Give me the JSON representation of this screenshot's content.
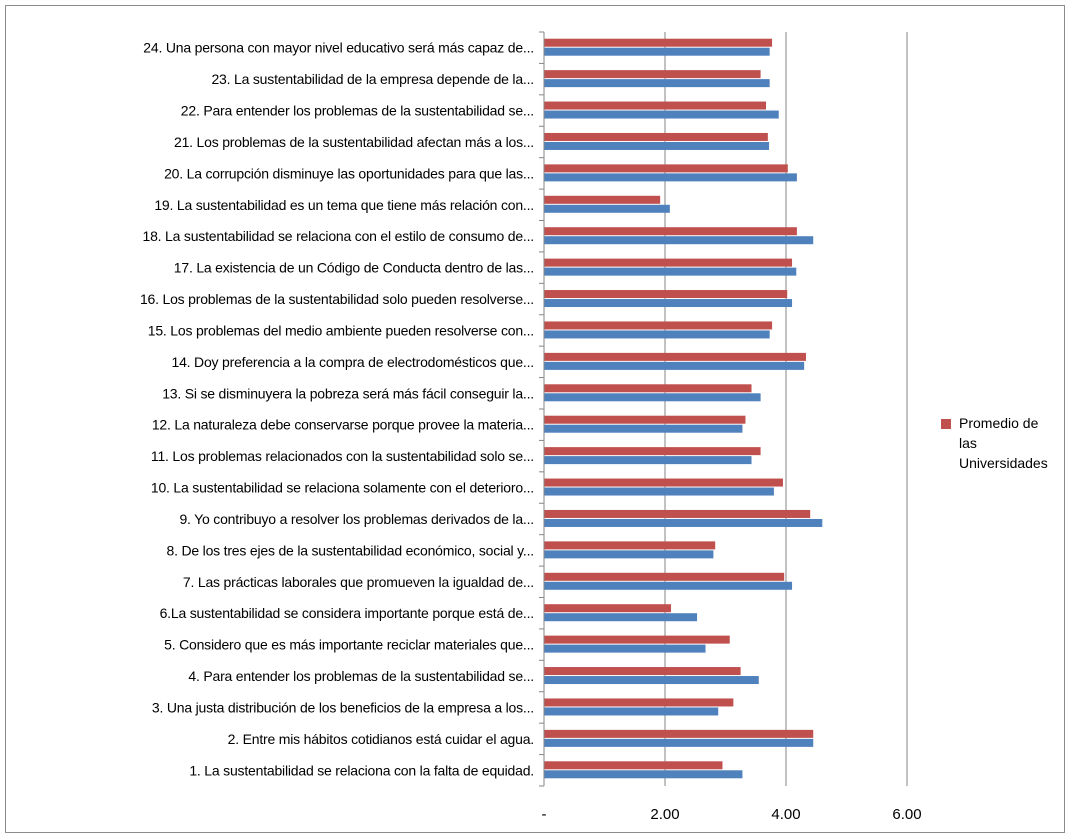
{
  "chart_data": {
    "type": "bar",
    "orientation": "horizontal",
    "categories": [
      "1. La sustentabilidad se relaciona con la falta de equidad.",
      "2. Entre mis hábitos cotidianos está cuidar el agua.",
      "3. Una justa distribución de los beneficios de la empresa a los...",
      "4. Para entender los problemas de la sustentabilidad se...",
      "5. Considero que es más importante reciclar materiales que...",
      "6.La sustentabilidad se considera  importante porque está de...",
      "7. Las prácticas laborales que promueven la igualdad de...",
      "8. De los tres ejes de la sustentabilidad económico, social y...",
      "9. Yo contribuyo a resolver los problemas derivados de la...",
      "10. La sustentabilidad se relaciona solamente con el deterioro...",
      "11. Los problemas relacionados con la sustentabilidad solo se...",
      "12. La naturaleza debe conservarse porque provee la materia...",
      "13. Si se disminuyera la pobreza será más fácil conseguir la...",
      "14. Doy preferencia a la compra de electrodomésticos que...",
      "15. Los problemas del medio ambiente pueden resolverse con...",
      "16. Los problemas de la sustentabilidad solo pueden resolverse...",
      "17. La existencia de un Código de Conducta dentro de las...",
      "18. La sustentabilidad se relaciona con el estilo de consumo de...",
      "19. La sustentabilidad es un tema que tiene más relación con...",
      "20. La corrupción disminuye las oportunidades para que las...",
      "21. Los problemas de la sustentabilidad afectan más a los...",
      "22. Para entender los problemas de la sustentabilidad se...",
      "23. La sustentabilidad de la empresa depende de la...",
      "24. Una persona con mayor nivel educativo será más capaz de..."
    ],
    "series": [
      {
        "name": "Promedio de las Universidades",
        "color": "#c0504d",
        "values": [
          2.95,
          4.45,
          3.13,
          3.25,
          3.07,
          2.1,
          3.97,
          2.83,
          4.4,
          3.95,
          3.58,
          3.33,
          3.43,
          4.33,
          3.77,
          4.02,
          4.1,
          4.18,
          1.92,
          4.03,
          3.7,
          3.67,
          3.58,
          3.77
        ]
      },
      {
        "color": "#4f81bd",
        "values": [
          3.28,
          4.45,
          2.88,
          3.55,
          2.67,
          2.53,
          4.1,
          2.8,
          4.6,
          3.8,
          3.43,
          3.28,
          3.58,
          4.3,
          3.73,
          4.1,
          4.17,
          4.45,
          2.08,
          4.18,
          3.72,
          3.88,
          3.73,
          3.73
        ]
      }
    ],
    "xlim": [
      0,
      6
    ],
    "xticks": [
      0,
      2,
      4,
      6
    ],
    "xtick_labels": [
      "-",
      "2.00",
      "4.00",
      "6.00"
    ],
    "grid": "vertical major gridlines",
    "legend": {
      "position": "right",
      "entries": [
        "Promedio de las Universidades"
      ]
    }
  }
}
